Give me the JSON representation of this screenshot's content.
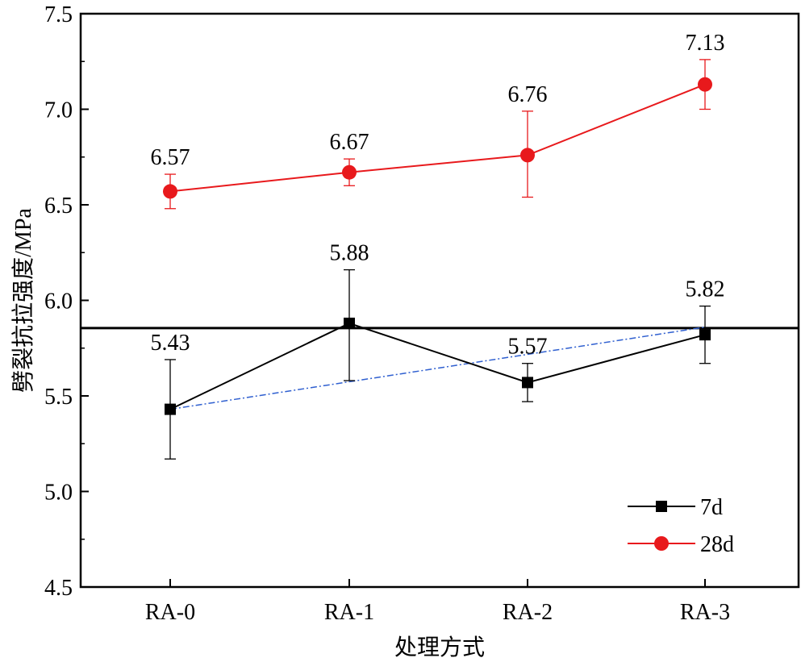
{
  "chart_data": {
    "type": "line",
    "title": "",
    "xlabel": "处理方式",
    "ylabel": "劈裂抗拉强度/MPa",
    "categories": [
      "RA-0",
      "RA-1",
      "RA-2",
      "RA-3"
    ],
    "ylim": [
      4.5,
      7.5
    ],
    "yticks": [
      "4.5",
      "5.0",
      "5.5",
      "6.0",
      "6.5",
      "7.0",
      "7.5"
    ],
    "series": [
      {
        "name": "7d",
        "color": "#000000",
        "marker": "square",
        "values": [
          5.43,
          5.88,
          5.57,
          5.82
        ],
        "labels": [
          "5.43",
          "5.88",
          "5.57",
          "5.82"
        ],
        "error_low": [
          5.17,
          5.58,
          5.47,
          5.67
        ],
        "error_high": [
          5.69,
          6.16,
          5.67,
          5.97
        ]
      },
      {
        "name": "28d",
        "color": "#e8191c",
        "marker": "circle",
        "values": [
          6.57,
          6.67,
          6.76,
          7.13
        ],
        "labels": [
          "6.57",
          "6.67",
          "6.76",
          "7.13"
        ],
        "error_low": [
          6.48,
          6.6,
          6.54,
          7.0
        ],
        "error_high": [
          6.66,
          6.74,
          6.99,
          7.26
        ]
      }
    ],
    "reference_line": {
      "y": 5.855,
      "color": "#000000"
    },
    "dashed_line": {
      "from_y": 5.43,
      "to_y": 5.86,
      "color": "#3060d0"
    },
    "legend": {
      "position": "bottom-right",
      "entries": [
        "7d",
        "28d"
      ]
    }
  }
}
